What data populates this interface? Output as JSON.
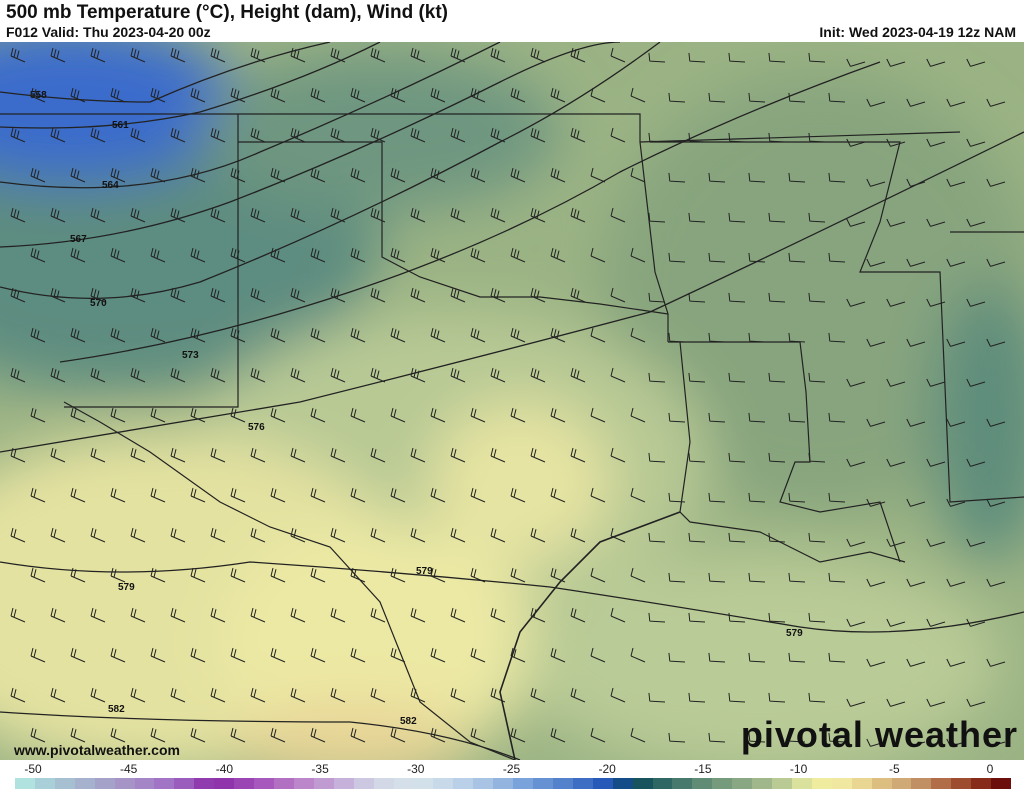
{
  "header": {
    "title": "500 mb Temperature (°C), Height (dam), Wind (kt)",
    "valid": "F012 Valid: Thu 2023-04-20 00z",
    "init": "Init: Wed 2023-04-19 12z NAM"
  },
  "map": {
    "contour_labels": [
      "558",
      "561",
      "564",
      "567",
      "570",
      "573",
      "576",
      "579",
      "579",
      "579",
      "582",
      "582"
    ],
    "colors": {
      "cold_blue": "#3a6ccc",
      "teal": "#3f7a78",
      "green": "#8eaa80",
      "light_green": "#b3c490",
      "yellow": "#ece9a4",
      "tan": "#e8d496"
    }
  },
  "watermark": {
    "url": "www.pivotalweather.com",
    "logo": "pivotal weather"
  },
  "colorbar": {
    "unit": "°C",
    "min": -50,
    "max": 0,
    "ticks": [
      "-50",
      "-45",
      "-40",
      "-35",
      "-30",
      "-25",
      "-20",
      "-15",
      "-10",
      "-5",
      "0"
    ],
    "anchors": [
      [
        -50,
        "#b3ece2"
      ],
      [
        -48,
        "#a6c7d4"
      ],
      [
        -46,
        "#a5a9cb"
      ],
      [
        -44,
        "#a68dc6"
      ],
      [
        -42,
        "#9f6cc4"
      ],
      [
        -40,
        "#8b2ca8"
      ],
      [
        -38,
        "#a04cb8"
      ],
      [
        -36,
        "#b87cc6"
      ],
      [
        -34,
        "#c2a5d6"
      ],
      [
        -32,
        "#d0d4e4"
      ],
      [
        -30,
        "#d7e3ea"
      ],
      [
        -28,
        "#c3d6ea"
      ],
      [
        -26,
        "#a0bde2"
      ],
      [
        -24,
        "#6f9ad8"
      ],
      [
        -22,
        "#4a78c8"
      ],
      [
        -20,
        "#1b4eb4"
      ],
      [
        -19,
        "#0c4a5a"
      ],
      [
        -17,
        "#3a7068"
      ],
      [
        -15,
        "#6c9478"
      ],
      [
        -13,
        "#93ad86"
      ],
      [
        -11,
        "#c5d49a"
      ],
      [
        -10,
        "#eeee9e"
      ],
      [
        -8,
        "#f0e4a0"
      ],
      [
        -7,
        "#e4c886"
      ],
      [
        -5,
        "#c8a070"
      ],
      [
        -3,
        "#a85c3a"
      ],
      [
        -1,
        "#7c1c10"
      ],
      [
        0,
        "#5a0008"
      ]
    ]
  }
}
